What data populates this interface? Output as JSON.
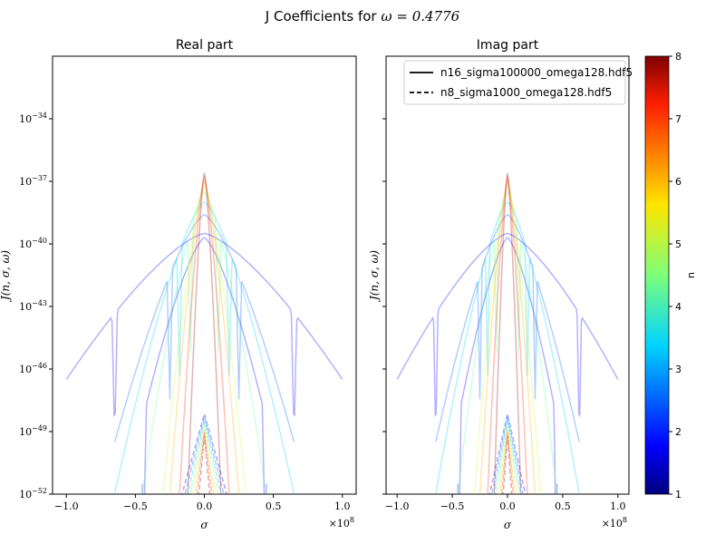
{
  "figure": {
    "title_prefix": "J Coefficients for ",
    "title_math": "ω = 0.4776"
  },
  "chart_data": {
    "type": "line",
    "panels": [
      {
        "title": "Real part",
        "xlabel": "σ",
        "ylabel": "J(n, σ, ω)",
        "xlim": [
          -1.1,
          1.1
        ],
        "x_multiplier": "×10",
        "x_multiplier_exp": "8",
        "ylog_exp_range": [
          -52,
          -31
        ],
        "xticks": [
          "−1.0",
          "−0.5",
          "0.0",
          "0.5",
          "1.0"
        ],
        "xtick_values": [
          -1.0,
          -0.5,
          0.0,
          0.5,
          1.0
        ],
        "yticks": [
          {
            "exp": -52,
            "label": "10",
            "sup": "−52"
          },
          {
            "exp": -49,
            "label": "10",
            "sup": "−49"
          },
          {
            "exp": -46,
            "label": "10",
            "sup": "−46"
          },
          {
            "exp": -43,
            "label": "10",
            "sup": "−43"
          },
          {
            "exp": -40,
            "label": "10",
            "sup": "−40"
          },
          {
            "exp": -37,
            "label": "10",
            "sup": "−37"
          },
          {
            "exp": -34,
            "label": "10",
            "sup": "−34"
          }
        ]
      },
      {
        "title": "Imag part",
        "xlabel": "σ",
        "ylabel": "J(n, σ, ω)",
        "xlim": [
          -1.1,
          1.1
        ],
        "x_multiplier": "×10",
        "x_multiplier_exp": "8",
        "ylog_exp_range": [
          -52,
          -31
        ],
        "xticks": [
          "−1.0",
          "−0.5",
          "0.0",
          "0.5",
          "1.0"
        ],
        "xtick_values": [
          -1.0,
          -0.5,
          0.0,
          0.5,
          1.0
        ]
      }
    ],
    "legend": {
      "placement": "top-right of Imag part",
      "entries": [
        {
          "label": "n16_sigma100000_omega128.hdf5",
          "style": "solid"
        },
        {
          "label": "n8_sigma1000_omega128.hdf5",
          "style": "dashed"
        }
      ]
    },
    "colorbar": {
      "label": "n",
      "range": [
        1,
        8
      ],
      "ticks": [
        "1",
        "2",
        "3",
        "4",
        "5",
        "6",
        "7",
        "8"
      ],
      "colormap": "jet"
    },
    "series": [
      {
        "n": 1,
        "file": "solid",
        "sigma_max": 1.0,
        "peak_exp": -39.5,
        "edge_exp": -46.5,
        "nulls": [
          -0.65,
          0.65
        ],
        "color": "#0000ff"
      },
      {
        "n": 1,
        "file": "solid-b",
        "sigma_max": 0.45,
        "peak_exp": -39.7,
        "edge_exp": -48.5,
        "nulls": [
          -0.44,
          0.44
        ],
        "color": "#0000ff"
      },
      {
        "n": 2,
        "file": "solid",
        "sigma_max": 0.65,
        "peak_exp": -38.6,
        "edge_exp": -49.5,
        "nulls": [
          -0.25,
          0.25
        ],
        "color": "#0060ff"
      },
      {
        "n": 3,
        "file": "solid",
        "sigma_max": 0.65,
        "peak_exp": -38.0,
        "edge_exp": -52,
        "nulls": [
          -0.18,
          0.18
        ],
        "color": "#00d0ff"
      },
      {
        "n": 4,
        "file": "solid",
        "sigma_max": 0.45,
        "peak_exp": -37.5,
        "edge_exp": -52,
        "nulls": [
          -0.1,
          0.1
        ],
        "color": "#60ffa0"
      },
      {
        "n": 5,
        "file": "solid",
        "sigma_max": 0.3,
        "peak_exp": -37.2,
        "edge_exp": -52,
        "nulls": [],
        "color": "#d0ff30"
      },
      {
        "n": 6,
        "file": "solid",
        "sigma_max": 0.25,
        "peak_exp": -37.0,
        "edge_exp": -52,
        "nulls": [],
        "color": "#ffb000"
      },
      {
        "n": 7,
        "file": "solid",
        "sigma_max": 0.18,
        "peak_exp": -36.8,
        "edge_exp": -52,
        "nulls": [],
        "color": "#ff3000"
      },
      {
        "n": 8,
        "file": "solid",
        "sigma_max": 0.12,
        "peak_exp": -36.6,
        "edge_exp": -52,
        "nulls": [],
        "color": "#a00000"
      }
    ]
  }
}
